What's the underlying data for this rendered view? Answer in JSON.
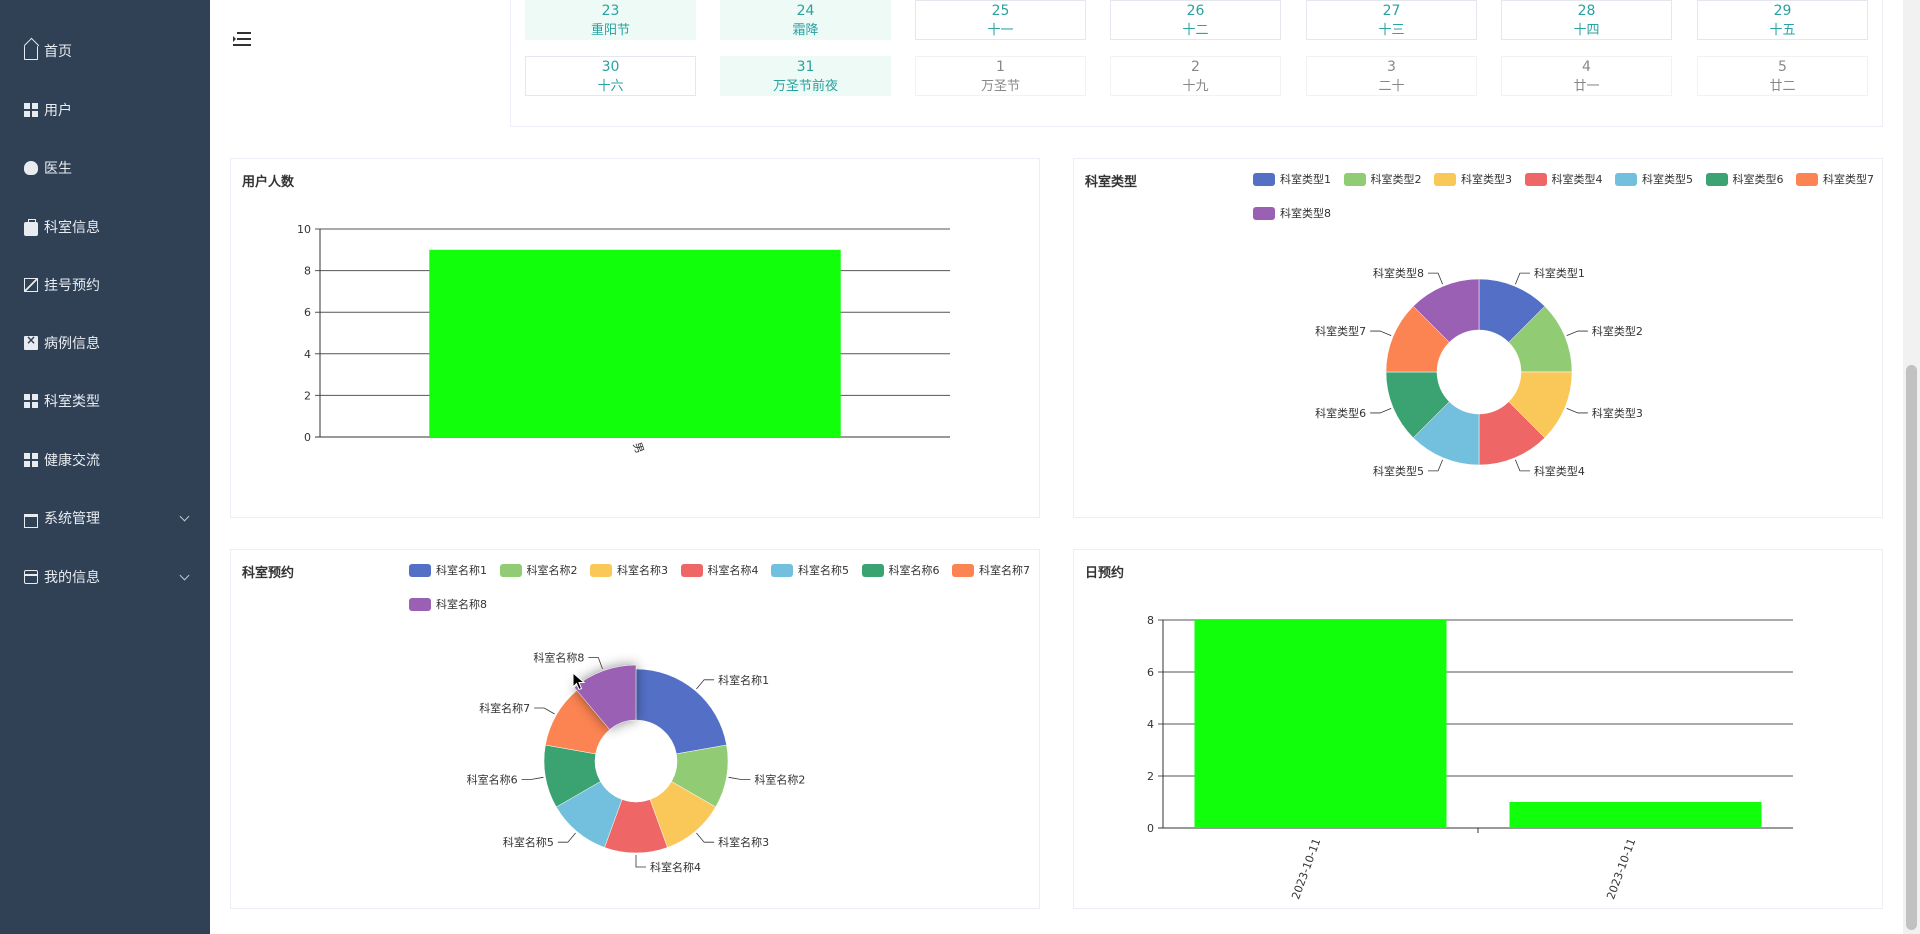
{
  "sidebar": {
    "items": [
      {
        "label": "首页",
        "icon": "home-icon"
      },
      {
        "label": "用户",
        "icon": "grid-icon"
      },
      {
        "label": "医生",
        "icon": "bulb-icon"
      },
      {
        "label": "科室信息",
        "icon": "briefcase-icon"
      },
      {
        "label": "挂号预约",
        "icon": "chart-icon"
      },
      {
        "label": "病例信息",
        "icon": "document-icon"
      },
      {
        "label": "科室类型",
        "icon": "grid-icon"
      },
      {
        "label": "健康交流",
        "icon": "grid-icon"
      },
      {
        "label": "系统管理",
        "icon": "house-icon",
        "expandable": true
      },
      {
        "label": "我的信息",
        "icon": "card-icon",
        "expandable": true
      }
    ]
  },
  "calendar": {
    "row1": [
      {
        "day": "23",
        "lunar": "重阳节",
        "style": "hl"
      },
      {
        "day": "24",
        "lunar": "霜降",
        "style": "hl"
      },
      {
        "day": "25",
        "lunar": "十一",
        "style": "cur"
      },
      {
        "day": "26",
        "lunar": "十二",
        "style": "cur"
      },
      {
        "day": "27",
        "lunar": "十三",
        "style": "cur"
      },
      {
        "day": "28",
        "lunar": "十四",
        "style": "cur"
      },
      {
        "day": "29",
        "lunar": "十五",
        "style": "cur"
      }
    ],
    "row2": [
      {
        "day": "30",
        "lunar": "十六",
        "style": "cur"
      },
      {
        "day": "31",
        "lunar": "万圣节前夜",
        "style": "hl"
      },
      {
        "day": "1",
        "lunar": "万圣节",
        "style": "dim"
      },
      {
        "day": "2",
        "lunar": "十九",
        "style": "dim"
      },
      {
        "day": "3",
        "lunar": "二十",
        "style": "dim"
      },
      {
        "day": "4",
        "lunar": "廿一",
        "style": "dim"
      },
      {
        "day": "5",
        "lunar": "廿二",
        "style": "dim"
      }
    ]
  },
  "colors": {
    "sidebar_bg": "#304156",
    "bar_green": "#11ff0b",
    "calendar_accent": "#29a2a0",
    "palette": [
      "#5470c6",
      "#91cc75",
      "#fac858",
      "#ee6666",
      "#73c0de",
      "#3ba272",
      "#fc8452",
      "#9a60b4"
    ]
  },
  "chart_data": [
    {
      "id": "users",
      "type": "bar",
      "title": "用户人数",
      "categories": [
        "男"
      ],
      "values": [
        9
      ],
      "ylim": [
        0,
        10
      ],
      "yticks": [
        "0",
        "2",
        "4",
        "6",
        "8",
        "10"
      ],
      "grid": true
    },
    {
      "id": "dept_type",
      "type": "pie",
      "title": "科室类型",
      "donut": true,
      "legend": "top-right",
      "labels": [
        "科室类型1",
        "科室类型2",
        "科室类型3",
        "科室类型4",
        "科室类型5",
        "科室类型6",
        "科室类型7",
        "科室类型8"
      ],
      "values": [
        1,
        1,
        1,
        1,
        1,
        1,
        1,
        1
      ]
    },
    {
      "id": "dept_appt",
      "type": "pie",
      "title": "科室预约",
      "donut": true,
      "legend": "top",
      "labels": [
        "科室名称1",
        "科室名称2",
        "科室名称3",
        "科室名称4",
        "科室名称5",
        "科室名称6",
        "科室名称7",
        "科室名称8"
      ],
      "values": [
        2,
        1,
        1,
        1,
        1,
        1,
        1,
        1
      ],
      "highlighted": "科室名称8"
    },
    {
      "id": "daily_appt",
      "type": "bar",
      "title": "日预约",
      "categories": [
        "2023-10-11",
        "2023-10-11"
      ],
      "values": [
        8,
        1
      ],
      "ylim": [
        0,
        8
      ],
      "yticks": [
        "0",
        "2",
        "4",
        "6",
        "8"
      ],
      "grid": true
    }
  ]
}
